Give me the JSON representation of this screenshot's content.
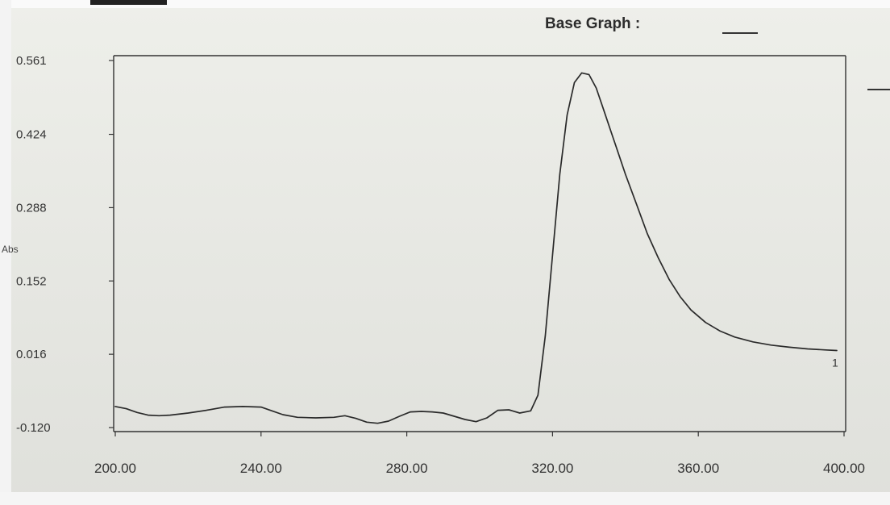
{
  "legend": {
    "label": "Base Graph :",
    "swatch_color": "#333333"
  },
  "chart_data": {
    "type": "line",
    "title": "",
    "xlabel": "",
    "ylabel": "Abs",
    "xlim": [
      200,
      400
    ],
    "ylim": [
      -0.12,
      0.561
    ],
    "x_ticks": [
      200,
      240,
      280,
      320,
      360,
      400
    ],
    "x_tick_labels": [
      "200.00",
      "240.00",
      "280.00",
      "320.00",
      "360.00",
      "400.00"
    ],
    "y_ticks": [
      -0.12,
      0.016,
      0.152,
      0.288,
      0.424,
      0.561
    ],
    "y_tick_labels": [
      "-0.120",
      "0.016",
      "0.152",
      "0.288",
      "0.424",
      "0.561"
    ],
    "grid": false,
    "legend_position": "top-right",
    "series": [
      {
        "name": "Base Graph",
        "label": "1",
        "color": "#2a2a2a",
        "x": [
          200,
          203,
          206,
          209,
          212,
          215,
          220,
          225,
          230,
          235,
          240,
          243,
          246,
          250,
          255,
          260,
          263,
          266,
          269,
          272,
          275,
          278,
          281,
          284,
          287,
          290,
          293,
          296,
          299,
          302,
          305,
          308,
          311,
          314,
          316,
          318,
          320,
          322,
          324,
          326,
          328,
          330,
          332,
          334,
          336,
          338,
          340,
          343,
          346,
          349,
          352,
          355,
          358,
          362,
          366,
          370,
          375,
          380,
          385,
          390,
          395,
          398
        ],
        "y": [
          -0.081,
          -0.085,
          -0.092,
          -0.097,
          -0.098,
          -0.097,
          -0.093,
          -0.088,
          -0.082,
          -0.081,
          -0.082,
          -0.089,
          -0.096,
          -0.101,
          -0.102,
          -0.101,
          -0.098,
          -0.103,
          -0.11,
          -0.112,
          -0.108,
          -0.099,
          -0.091,
          -0.09,
          -0.091,
          -0.093,
          -0.099,
          -0.105,
          -0.109,
          -0.102,
          -0.088,
          -0.087,
          -0.093,
          -0.089,
          -0.06,
          0.05,
          0.2,
          0.35,
          0.46,
          0.52,
          0.538,
          0.535,
          0.51,
          0.47,
          0.43,
          0.39,
          0.35,
          0.295,
          0.24,
          0.195,
          0.155,
          0.123,
          0.098,
          0.075,
          0.059,
          0.048,
          0.039,
          0.033,
          0.029,
          0.026,
          0.024,
          0.023
        ]
      }
    ]
  }
}
